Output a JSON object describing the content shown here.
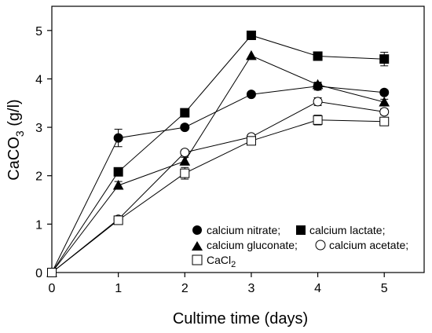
{
  "chart_data": {
    "type": "line",
    "xlabel": "Cultime time (days)",
    "ylabel_main": "CaCO",
    "ylabel_sub": "3",
    "ylabel_tail": " (g/l)",
    "xlim": [
      0,
      5.6
    ],
    "ylim": [
      0,
      5.5
    ],
    "xticks": [
      0,
      1,
      2,
      3,
      4,
      5
    ],
    "yticks": [
      0,
      1,
      2,
      3,
      4,
      5
    ],
    "grid": false,
    "legend_position": "bottom-right",
    "series": [
      {
        "name": "calcium nitrate;",
        "marker": "circle",
        "filled": true,
        "x": [
          0,
          1,
          2,
          3,
          4,
          5
        ],
        "y": [
          0,
          2.78,
          3.0,
          3.68,
          3.85,
          3.72
        ],
        "err": [
          0,
          0.18,
          0.05,
          0.03,
          0.08,
          0.05
        ]
      },
      {
        "name": "calcium lactate;",
        "marker": "square",
        "filled": true,
        "x": [
          0,
          1,
          2,
          3,
          4,
          5
        ],
        "y": [
          0,
          2.08,
          3.3,
          4.9,
          4.47,
          4.41
        ],
        "err": [
          0,
          0.05,
          0.05,
          0.05,
          0.05,
          0.14
        ]
      },
      {
        "name": "calcium gluconate;",
        "marker": "triangle",
        "filled": true,
        "x": [
          0,
          1,
          2,
          3,
          4,
          5
        ],
        "y": [
          0,
          1.8,
          2.3,
          4.48,
          3.88,
          3.52
        ],
        "err": [
          0,
          0.08,
          0.08,
          0.04,
          0.05,
          0.06
        ]
      },
      {
        "name": "calcium acetate;",
        "marker": "circle",
        "filled": false,
        "x": [
          0,
          1,
          2,
          3,
          4,
          5
        ],
        "y": [
          0,
          1.1,
          2.48,
          2.8,
          3.53,
          3.32
        ],
        "err": [
          0,
          0.05,
          0.05,
          0.04,
          0.08,
          0.06
        ]
      },
      {
        "name_main": "CaCl",
        "name_sub": "2",
        "marker": "square",
        "filled": false,
        "x": [
          0,
          1,
          2,
          3,
          4,
          5
        ],
        "y": [
          0,
          1.08,
          2.05,
          2.72,
          3.15,
          3.12
        ],
        "err": [
          0,
          0.05,
          0.12,
          0.05,
          0.1,
          0.05
        ]
      }
    ]
  }
}
